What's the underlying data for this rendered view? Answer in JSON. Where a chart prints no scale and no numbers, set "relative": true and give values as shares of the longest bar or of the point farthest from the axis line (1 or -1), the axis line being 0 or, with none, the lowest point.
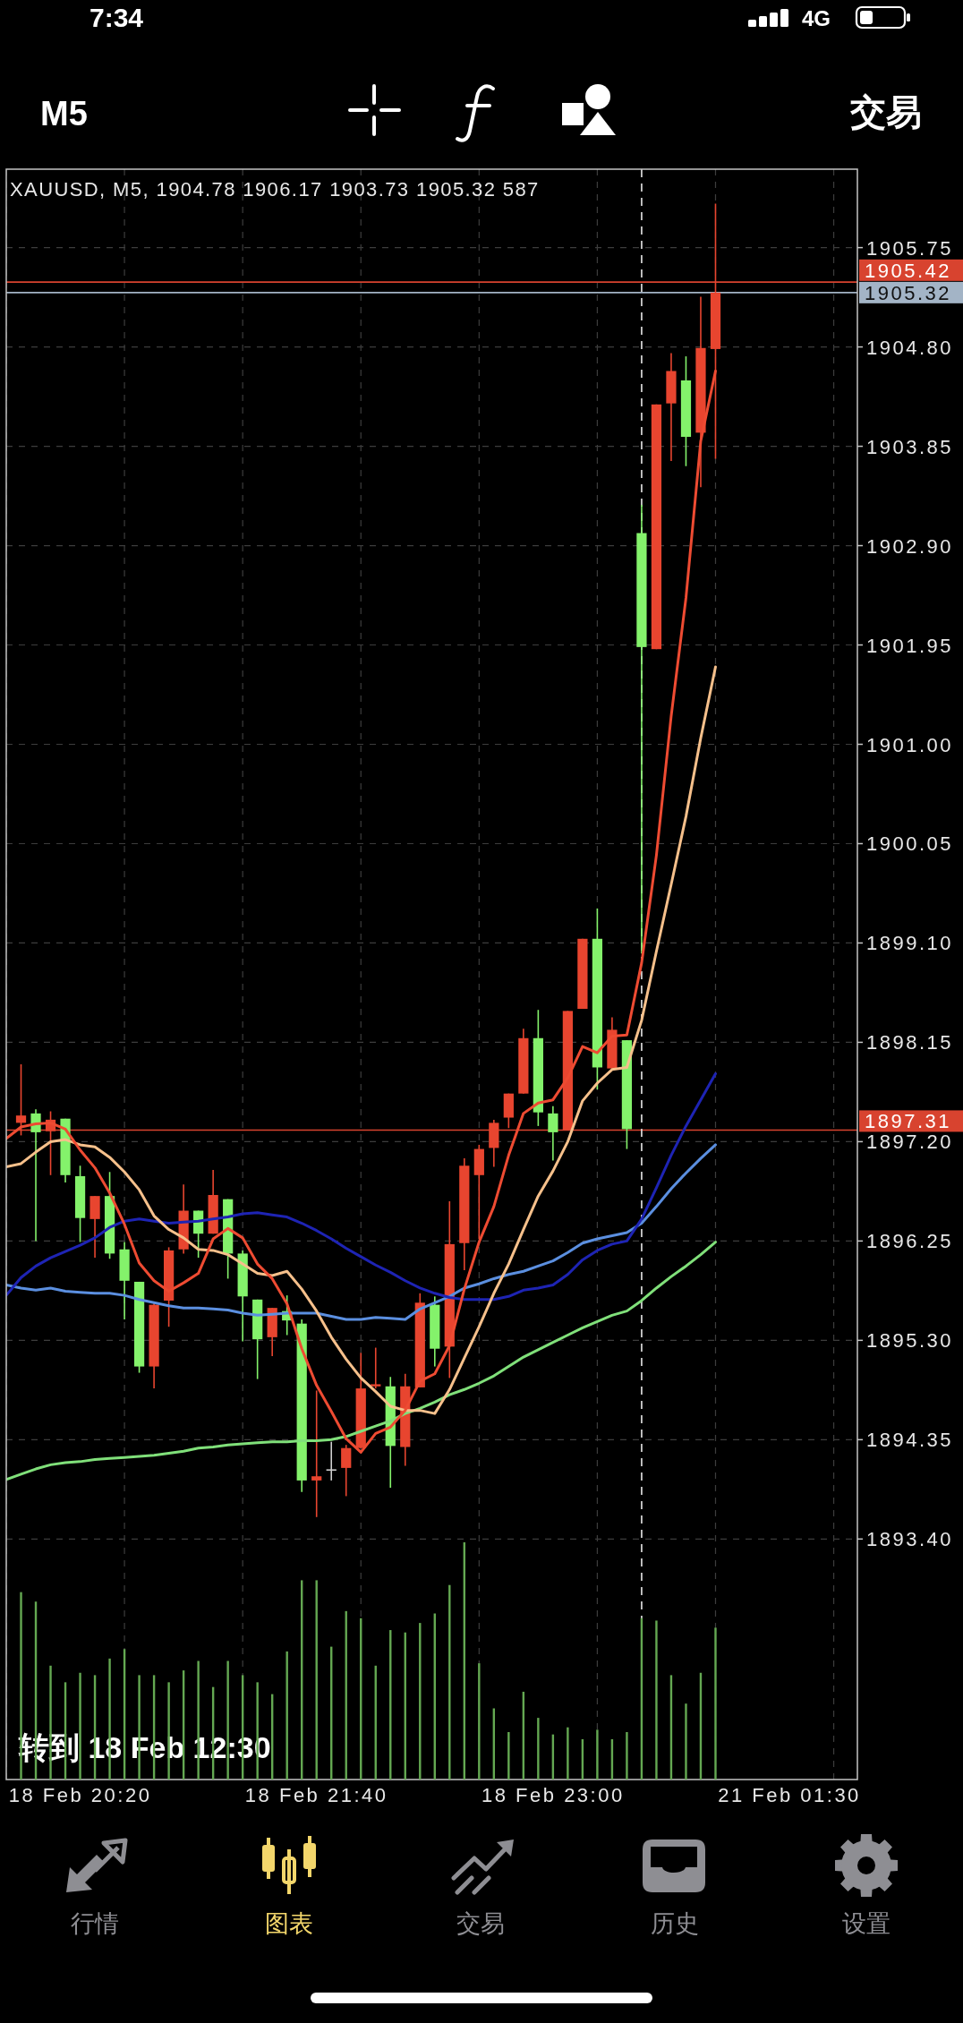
{
  "chart_data": [
    {
      "type": "candlestick",
      "title": "XAUUSD, M5, 1904.78 1906.17 1903.73 1905.32 587",
      "categories": [
        null,
        null,
        null,
        null,
        null,
        "18 Feb 20:20",
        null,
        null,
        null,
        null,
        null,
        null,
        null,
        null,
        null,
        null,
        null,
        null,
        null,
        null,
        null,
        "18 Feb 21:40",
        null,
        null,
        null,
        null,
        null,
        null,
        null,
        null,
        null,
        null,
        null,
        null,
        null,
        null,
        null,
        "18 Feb 23:00",
        null,
        null,
        null,
        null,
        null,
        null,
        null,
        null,
        null,
        null,
        null,
        null,
        null,
        null,
        null,
        "21 Feb 01:30"
      ],
      "ylim": [
        1891.1,
        1906.5
      ],
      "yticks": [
        1905.75,
        {
          "value": 1904.8,
          "label": "1904.80"
        },
        1903.85,
        {
          "value": 1902.9,
          "label": "1902.90"
        },
        1901.95,
        {
          "value": 1901.0,
          "label": "1901.00"
        },
        1900.05,
        {
          "value": 1899.1,
          "label": "1899.10"
        },
        1898.15,
        {
          "value": 1897.2,
          "label": "1897.20"
        },
        1896.25,
        {
          "value": 1895.3,
          "label": "1895.30"
        },
        1894.35,
        {
          "value": 1893.4,
          "label": "1893.40"
        }
      ],
      "grid": true,
      "ohlc": [
        null,
        [
          1897.38,
          1897.94,
          1897.26,
          1897.45
        ],
        [
          1897.47,
          1897.51,
          1896.25,
          1897.29
        ],
        [
          1897.3,
          1897.49,
          1896.88,
          1897.41
        ],
        [
          1897.42,
          1897.42,
          1896.81,
          1896.88
        ],
        [
          1896.87,
          1896.97,
          1896.24,
          1896.47
        ],
        [
          1896.46,
          1896.68,
          1896.09,
          1896.68
        ],
        [
          1896.68,
          1896.91,
          1896.08,
          1896.13
        ],
        [
          1896.17,
          1896.24,
          1895.5,
          1895.87
        ],
        [
          1895.86,
          1895.86,
          1894.99,
          1895.05
        ],
        [
          1895.05,
          1895.67,
          1894.84,
          1895.64
        ],
        [
          1895.68,
          1896.19,
          1895.43,
          1896.16
        ],
        [
          1896.17,
          1896.79,
          1896.13,
          1896.54
        ],
        [
          1896.54,
          1896.54,
          1896.09,
          1896.32
        ],
        [
          1896.32,
          1896.93,
          1896.32,
          1896.69
        ],
        [
          1896.65,
          1896.65,
          1895.89,
          1896.13
        ],
        [
          1896.13,
          1896.16,
          1895.29,
          1895.72
        ],
        [
          1895.69,
          1895.69,
          1894.93,
          1895.31
        ],
        [
          1895.33,
          1895.61,
          1895.15,
          1895.61
        ],
        [
          1895.58,
          1895.73,
          1895.35,
          1895.49
        ],
        [
          1895.46,
          1895.5,
          1893.85,
          1893.96
        ],
        [
          1893.96,
          1894.82,
          1893.61,
          1894.0
        ],
        [
          1894.06,
          1894.33,
          1893.96,
          1894.06
        ],
        [
          1894.08,
          1894.3,
          1893.81,
          1894.27
        ],
        [
          1894.27,
          1895.18,
          1894.27,
          1894.84
        ],
        [
          1894.86,
          1895.23,
          1894.84,
          1894.88
        ],
        [
          1894.86,
          1894.95,
          1893.89,
          1894.29
        ],
        [
          1894.28,
          1894.98,
          1894.1,
          1894.86
        ],
        [
          1894.85,
          1895.75,
          1894.85,
          1895.66
        ],
        [
          1895.64,
          1895.72,
          1895.05,
          1895.22
        ],
        [
          1895.24,
          1896.63,
          1894.94,
          1896.22
        ],
        [
          1896.23,
          1897.04,
          1895.97,
          1896.97
        ],
        [
          1896.88,
          1897.17,
          1896.27,
          1897.13
        ],
        [
          1897.14,
          1897.41,
          1896.96,
          1897.38
        ],
        [
          1897.43,
          1897.66,
          1897.33,
          1897.66
        ],
        [
          1897.66,
          1898.28,
          1897.66,
          1898.19
        ],
        [
          1898.19,
          1898.46,
          1897.35,
          1897.48
        ],
        [
          1897.47,
          1897.54,
          1897.02,
          1897.29
        ],
        [
          1897.31,
          1898.45,
          1897.31,
          1898.45
        ],
        [
          1898.47,
          1899.14,
          1898.47,
          1899.14
        ],
        [
          1899.14,
          1899.43,
          1897.7,
          1897.91
        ],
        [
          1897.9,
          1898.39,
          1897.9,
          1898.27
        ],
        [
          1898.17,
          1898.17,
          1897.13,
          1897.32
        ],
        [
          1903.02,
          1903.29,
          1899.0,
          1901.93
        ],
        [
          1901.91,
          1904.25,
          1901.91,
          1904.25
        ],
        [
          1904.26,
          1904.74,
          1903.71,
          1904.57
        ],
        [
          1904.48,
          1904.71,
          1903.66,
          1903.94
        ],
        [
          1903.98,
          1905.28,
          1903.46,
          1904.79
        ],
        [
          1904.78,
          1906.17,
          1903.73,
          1905.32
        ],
        null,
        null,
        null,
        null,
        null
      ],
      "colors": [
        null,
        "#e8452f",
        "#84f26b",
        "#e8452f",
        "#84f26b",
        "#84f26b",
        "#e8452f",
        "#84f26b",
        "#84f26b",
        "#84f26b",
        "#e8452f",
        "#e8452f",
        "#e8452f",
        "#84f26b",
        "#e8452f",
        "#84f26b",
        "#84f26b",
        "#84f26b",
        "#e8452f",
        "#84f26b",
        "#84f26b",
        "#e8452f",
        "#cfcfcf",
        "#e8452f",
        "#e8452f",
        "#e8452f",
        "#84f26b",
        "#e8452f",
        "#e8452f",
        "#84f26b",
        "#e8452f",
        "#e8452f",
        "#e8452f",
        "#e8452f",
        "#e8452f",
        "#e8452f",
        "#84f26b",
        "#84f26b",
        "#e8452f",
        "#e8452f",
        "#84f26b",
        "#e8452f",
        "#84f26b",
        "#84f26b",
        "#e8452f",
        "#e8452f",
        "#84f26b",
        "#e8452f",
        "#e8452f",
        null,
        null,
        null,
        null,
        null
      ],
      "series": [
        {
          "type": "line",
          "color": "#80e07a",
          "values": [
            1893.97,
            1894.02,
            1894.07,
            1894.11,
            1894.13,
            1894.14,
            1894.16,
            1894.17,
            1894.18,
            1894.19,
            1894.2,
            1894.22,
            1894.24,
            1894.27,
            1894.28,
            1894.3,
            1894.31,
            1894.32,
            1894.33,
            1894.33,
            1894.34,
            1894.34,
            1894.35,
            1894.38,
            1894.43,
            1894.48,
            1894.53,
            1894.6,
            1894.65,
            1894.71,
            1894.78,
            1894.83,
            1894.89,
            1894.96,
            1895.05,
            1895.14,
            1895.21,
            1895.28,
            1895.35,
            1895.42,
            1895.48,
            1895.54,
            1895.58,
            1895.68,
            1895.8,
            1895.91,
            1896.01,
            1896.12,
            1896.24,
            null,
            null,
            null,
            null,
            null
          ]
        },
        {
          "type": "line",
          "color": "#5b8fe0",
          "values": [
            1895.83,
            1895.8,
            1895.78,
            1895.8,
            1895.77,
            1895.76,
            1895.75,
            1895.75,
            1895.73,
            1895.69,
            1895.66,
            1895.63,
            1895.61,
            1895.61,
            1895.6,
            1895.59,
            1895.56,
            1895.54,
            1895.55,
            1895.56,
            1895.56,
            1895.56,
            1895.53,
            1895.5,
            1895.5,
            1895.52,
            1895.51,
            1895.5,
            1895.6,
            1895.66,
            1895.72,
            1895.8,
            1895.84,
            1895.89,
            1895.93,
            1895.96,
            1896.01,
            1896.06,
            1896.14,
            1896.23,
            1896.27,
            1896.3,
            1896.33,
            1896.42,
            1896.58,
            1896.75,
            1896.9,
            1897.04,
            1897.17,
            null,
            null,
            null,
            null,
            null
          ]
        },
        {
          "type": "line",
          "color": "#1e24b4",
          "values": [
            1895.73,
            1895.9,
            1896.01,
            1896.09,
            1896.15,
            1896.21,
            1896.28,
            1896.38,
            1896.44,
            1896.46,
            1896.44,
            1896.42,
            1896.43,
            1896.44,
            1896.46,
            1896.48,
            1896.51,
            1896.52,
            1896.5,
            1896.48,
            1896.42,
            1896.35,
            1896.27,
            1896.18,
            1896.1,
            1896.02,
            1895.95,
            1895.87,
            1895.8,
            1895.75,
            1895.71,
            1895.69,
            1895.69,
            1895.69,
            1895.72,
            1895.78,
            1895.8,
            1895.83,
            1895.93,
            1896.07,
            1896.16,
            1896.22,
            1896.25,
            1896.46,
            1896.76,
            1897.07,
            1897.35,
            1897.6,
            1897.85,
            null,
            null,
            null,
            null,
            null
          ]
        },
        {
          "type": "line",
          "color": "#f6c08b",
          "values": [
            1896.96,
            1896.99,
            1897.1,
            1897.2,
            1897.22,
            1897.17,
            1897.15,
            1897.05,
            1896.91,
            1896.74,
            1896.49,
            1896.36,
            1896.28,
            1896.17,
            1896.16,
            1896.12,
            1896.03,
            1895.94,
            1895.92,
            1895.96,
            1895.79,
            1895.58,
            1895.33,
            1895.12,
            1894.94,
            1894.81,
            1894.67,
            1894.63,
            1894.63,
            1894.6,
            1894.83,
            1895.13,
            1895.43,
            1895.75,
            1896.03,
            1896.36,
            1896.68,
            1896.92,
            1897.2,
            1897.59,
            1897.76,
            1897.89,
            1897.91,
            1898.36,
            1899.02,
            1899.66,
            1900.31,
            1901.06,
            1901.74,
            null,
            null,
            null,
            null,
            null
          ]
        },
        {
          "type": "line",
          "color": "#ee4b32",
          "values": [
            1897.23,
            1897.34,
            1897.37,
            1897.38,
            1897.32,
            1897.12,
            1896.95,
            1896.71,
            1896.41,
            1896.04,
            1895.87,
            1895.77,
            1895.85,
            1895.94,
            1896.27,
            1896.37,
            1896.28,
            1896.03,
            1895.89,
            1895.65,
            1895.22,
            1894.87,
            1894.62,
            1894.36,
            1894.23,
            1894.41,
            1894.47,
            1894.63,
            1894.91,
            1894.98,
            1895.25,
            1895.79,
            1896.24,
            1896.58,
            1897.07,
            1897.47,
            1897.57,
            1897.6,
            1897.81,
            1898.11,
            1898.05,
            1898.21,
            1898.22,
            1898.91,
            1899.94,
            1901.27,
            1902.4,
            1903.9,
            1904.57,
            null,
            null,
            null,
            null,
            null
          ]
        }
      ],
      "ref_lines": [
        {
          "axis": "y",
          "value": 1905.32,
          "label": "1905.32",
          "color": "#a3b4c6"
        },
        {
          "axis": "y",
          "value": 1905.42,
          "label": "1905.42",
          "color": "#d8432f"
        },
        {
          "axis": "y",
          "value": 1897.31,
          "label": "1897.31",
          "color": "#d8432f"
        }
      ],
      "annotations": [
        "7:34",
        "4G",
        "M5",
        "交易",
        "转到 18 Feb 12:30",
        "行情",
        "图表",
        "交易",
        "历史",
        "设置"
      ]
    },
    {
      "type": "bar",
      "relative": true,
      "color": "#64a852",
      "categories": [
        null,
        null,
        null,
        null,
        null,
        null,
        null,
        null,
        null,
        null,
        null,
        null,
        null,
        null,
        null,
        null,
        null,
        null,
        null,
        null,
        null,
        null,
        null,
        null,
        null,
        null,
        null,
        null,
        null,
        null,
        null,
        null,
        null,
        null,
        null,
        null,
        null,
        null,
        null,
        null,
        null,
        null,
        null,
        null,
        null,
        null,
        null,
        null
      ],
      "values": [
        0.79,
        0.75,
        0.48,
        0.41,
        0.45,
        0.44,
        0.51,
        0.55,
        0.44,
        0.44,
        0.41,
        0.46,
        0.5,
        0.39,
        0.5,
        0.44,
        0.41,
        0.36,
        0.54,
        0.84,
        0.84,
        0.56,
        0.71,
        0.68,
        0.48,
        0.63,
        0.62,
        0.66,
        0.7,
        0.82,
        1,
        0.49,
        0.3,
        0.2,
        0.37,
        0.26,
        0.19,
        0.22,
        0.17,
        0.21,
        0.17,
        0.2,
        0.68,
        0.67,
        0.44,
        0.32,
        0.45,
        0.64
      ]
    }
  ]
}
